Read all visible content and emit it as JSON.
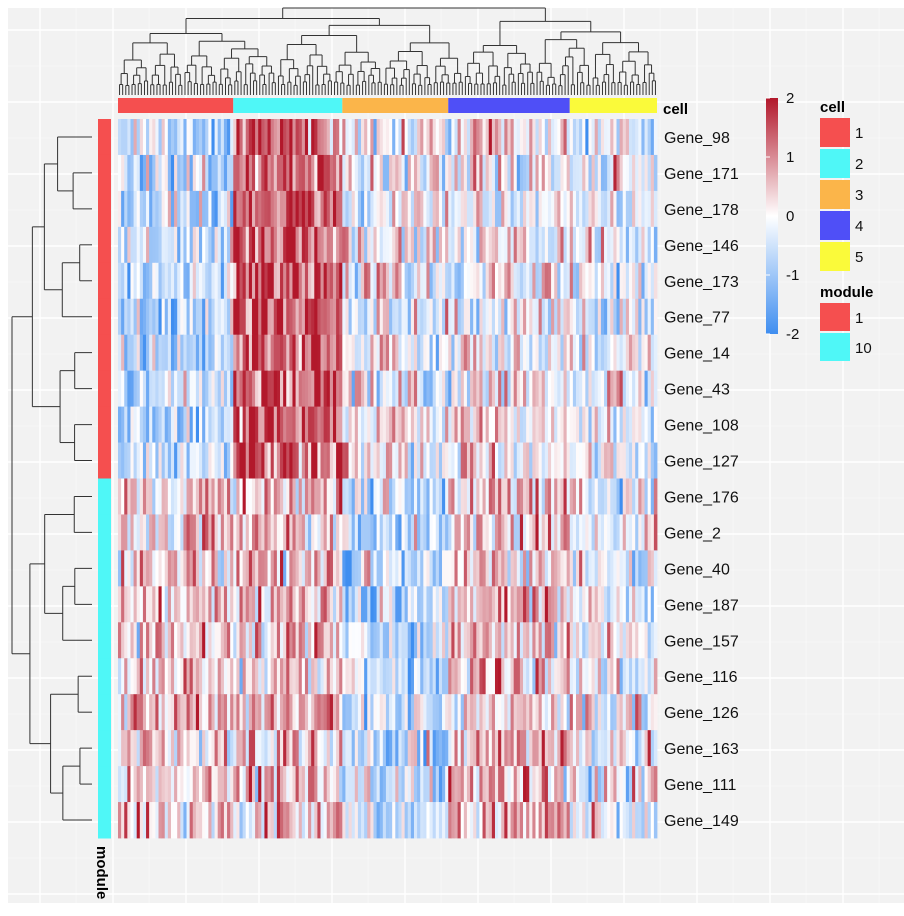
{
  "chart_data": {
    "type": "heatmap",
    "rows": [
      "Gene_98",
      "Gene_171",
      "Gene_178",
      "Gene_146",
      "Gene_173",
      "Gene_77",
      "Gene_14",
      "Gene_43",
      "Gene_108",
      "Gene_127",
      "Gene_176",
      "Gene_2",
      "Gene_40",
      "Gene_187",
      "Gene_157",
      "Gene_116",
      "Gene_126",
      "Gene_163",
      "Gene_111",
      "Gene_149"
    ],
    "row_modules": [
      "1",
      "1",
      "1",
      "1",
      "1",
      "1",
      "1",
      "1",
      "1",
      "1",
      "10",
      "10",
      "10",
      "10",
      "10",
      "10",
      "10",
      "10",
      "10",
      "10"
    ],
    "column_groups": [
      {
        "cell": "1",
        "n_columns": 37
      },
      {
        "cell": "2",
        "n_columns": 35
      },
      {
        "cell": "3",
        "n_columns": 34
      },
      {
        "cell": "4",
        "n_columns": 39
      },
      {
        "cell": "5",
        "n_columns": 28
      }
    ],
    "mean_expression": {
      "module_1": {
        "1": -0.6,
        "2": 1.4,
        "3": 0.0,
        "4": 0.0,
        "5": -0.2
      },
      "module_10": {
        "1": 0.4,
        "2": 0.5,
        "3": -0.6,
        "4": 0.5,
        "5": -0.1
      }
    },
    "color_scale": {
      "min": -2,
      "max": 2,
      "ticks": [
        "2",
        "1",
        "0",
        "-1",
        "-2"
      ],
      "low": "#3f8ef0",
      "mid": "#ffffff",
      "high": "#b2182b"
    },
    "annotations": {
      "cell": {
        "title": "cell",
        "labels": [
          "1",
          "2",
          "3",
          "4",
          "5"
        ],
        "colors": [
          "#f54f4f",
          "#4ff7f7",
          "#fbb54a",
          "#4f4ff7",
          "#fafa3a"
        ]
      },
      "module": {
        "title": "module",
        "labels": [
          "1",
          "10"
        ],
        "colors": [
          "#f54f4f",
          "#4ff7f7"
        ]
      }
    },
    "side_label": "module",
    "grid": true
  }
}
